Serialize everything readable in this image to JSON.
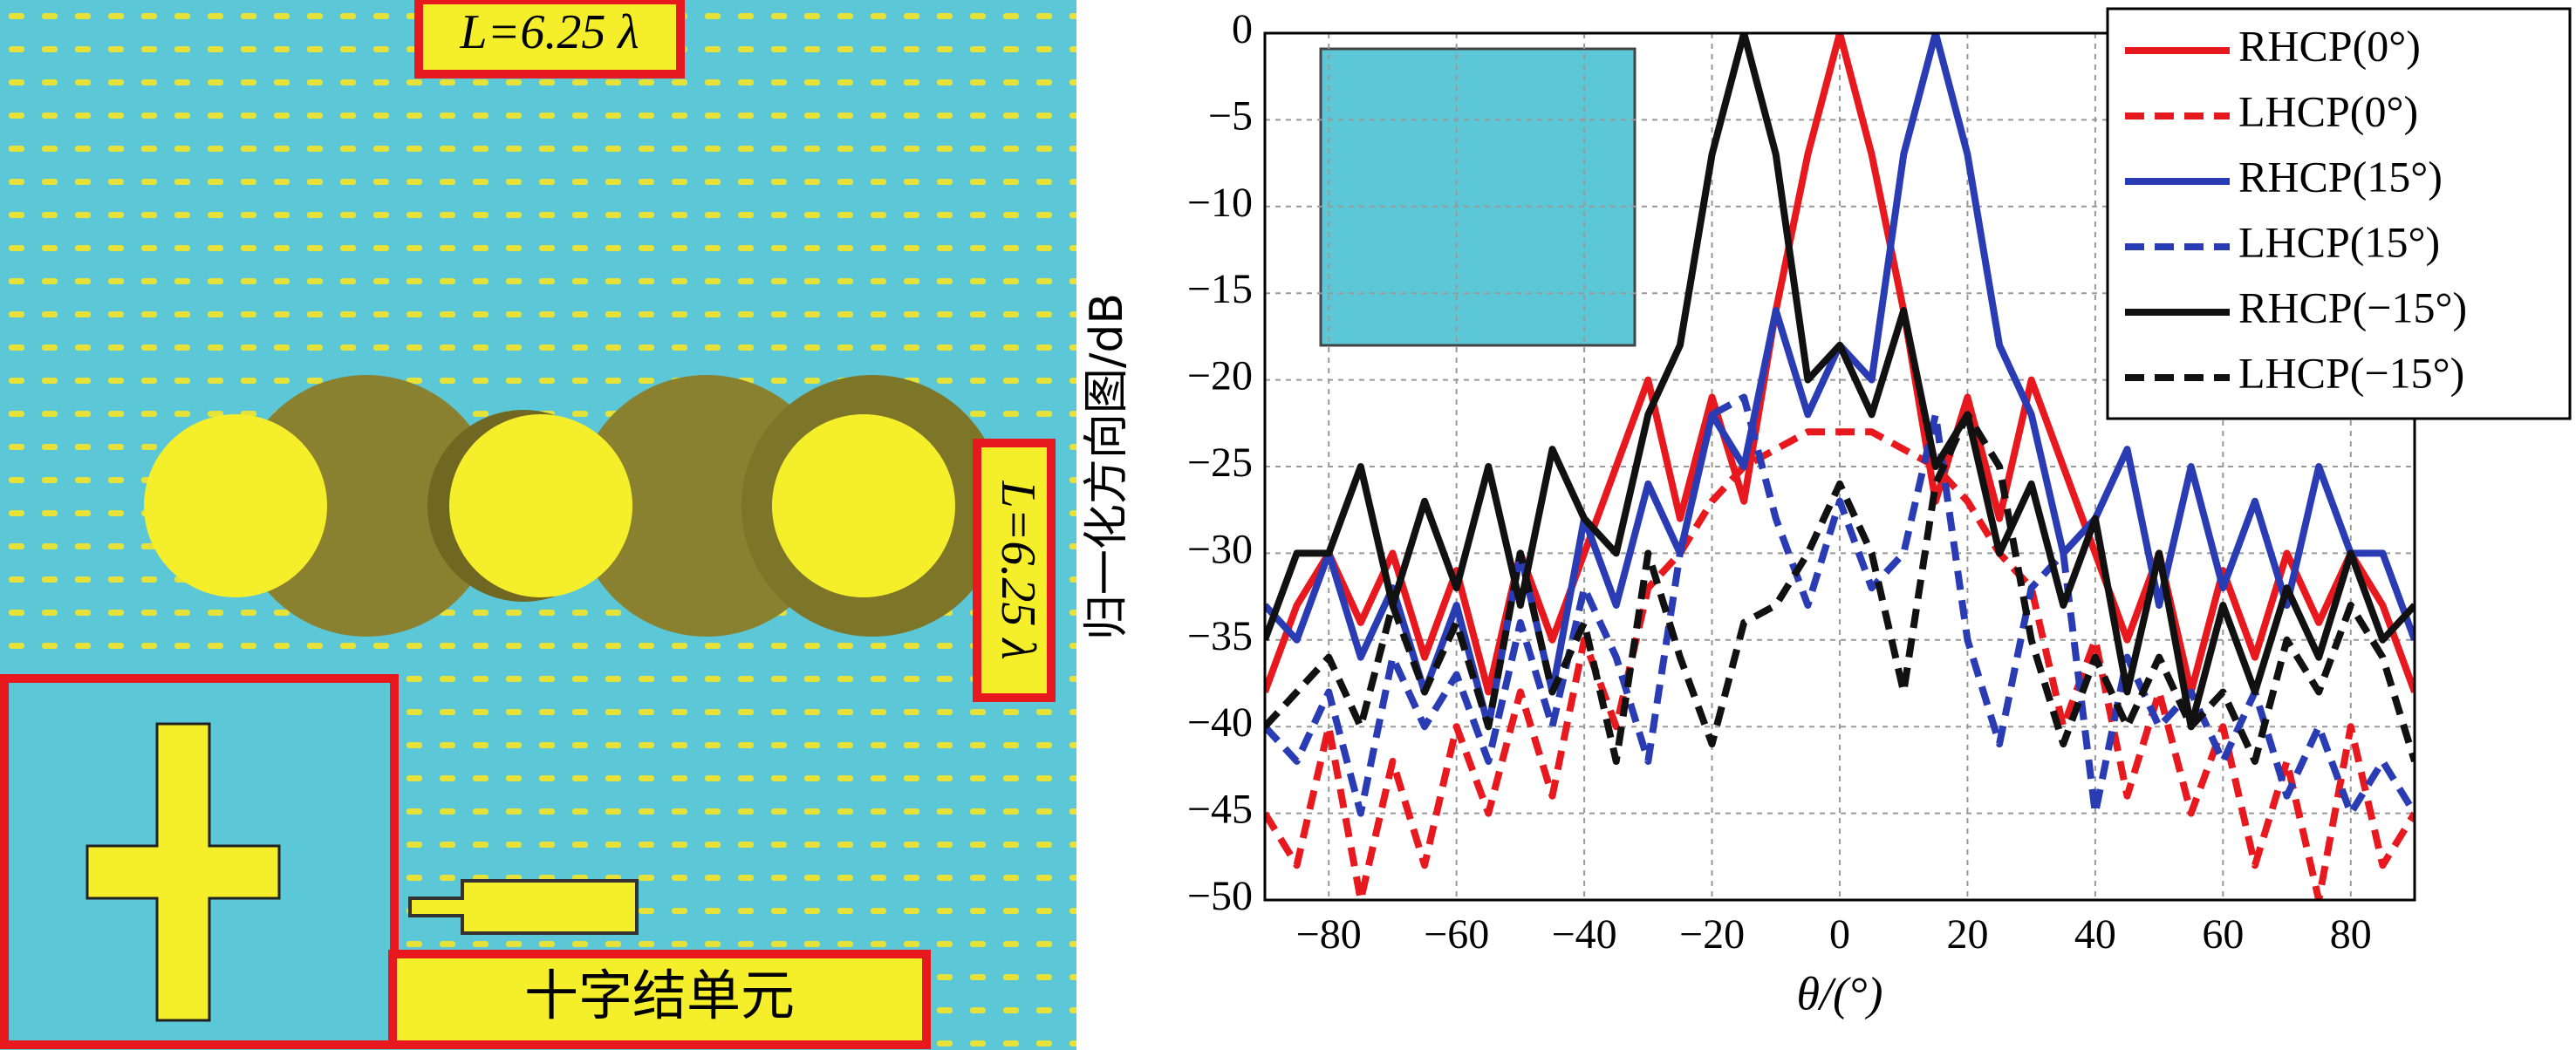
{
  "left_panel": {
    "top_label": "L=6.25 λ",
    "side_label": "L=6.25 λ",
    "caption": "十字结单元"
  },
  "chart_data": {
    "type": "line",
    "xlabel": "θ/(°)",
    "ylabel": "归一化方向图/dB",
    "x": [
      -90,
      -85,
      -80,
      -75,
      -70,
      -65,
      -60,
      -55,
      -50,
      -45,
      -40,
      -35,
      -30,
      -25,
      -20,
      -15,
      -10,
      -5,
      0,
      5,
      10,
      15,
      20,
      25,
      30,
      35,
      40,
      45,
      50,
      55,
      60,
      65,
      70,
      75,
      80,
      85,
      90
    ],
    "xlim": [
      -90,
      90
    ],
    "xticks": [
      {
        "value": -80,
        "label": "−80"
      },
      {
        "value": -60,
        "label": "−60"
      },
      {
        "value": -40,
        "label": "−40"
      },
      {
        "value": -20,
        "label": "−20"
      },
      0,
      20,
      40,
      60,
      80
    ],
    "ylim": [
      -50,
      0
    ],
    "yticks": [
      0,
      {
        "value": -5,
        "label": "−5"
      },
      {
        "value": -10,
        "label": "−10"
      },
      {
        "value": -15,
        "label": "−15"
      },
      {
        "value": -20,
        "label": "−20"
      },
      {
        "value": -25,
        "label": "−25"
      },
      {
        "value": -30,
        "label": "−30"
      },
      {
        "value": -35,
        "label": "−35"
      },
      {
        "value": -40,
        "label": "−40"
      },
      {
        "value": -45,
        "label": "−45"
      },
      {
        "value": -50,
        "label": "−50"
      }
    ],
    "grid": true,
    "legend": "upper right",
    "series": [
      {
        "name": "RHCP(0°)",
        "color": "#e8191e",
        "dash": false,
        "values": [
          -38,
          -33,
          -30,
          -34,
          -30,
          -36,
          -31,
          -38,
          -30,
          -35,
          -30,
          -25,
          -20,
          -28,
          -21,
          -27,
          -16,
          -7,
          0,
          -7,
          -16,
          -27,
          -21,
          -28,
          -20,
          -25,
          -30,
          -35,
          -30,
          -38,
          -31,
          -36,
          -30,
          -34,
          -30,
          -33,
          -38
        ]
      },
      {
        "name": "LHCP(0°)",
        "color": "#e8191e",
        "dash": true,
        "values": [
          -45,
          -48,
          -40,
          -50,
          -42,
          -48,
          -40,
          -45,
          -38,
          -44,
          -35,
          -40,
          -32,
          -30,
          -27,
          -25,
          -24,
          -23,
          -23,
          -23,
          -24,
          -25,
          -27,
          -30,
          -32,
          -40,
          -35,
          -44,
          -38,
          -45,
          -40,
          -48,
          -42,
          -50,
          -40,
          -48,
          -45
        ]
      },
      {
        "name": "RHCP(15°)",
        "color": "#2a3cb4",
        "dash": false,
        "values": [
          -33,
          -35,
          -30,
          -36,
          -32,
          -38,
          -33,
          -40,
          -30,
          -38,
          -28,
          -33,
          -26,
          -30,
          -22,
          -25,
          -16,
          -22,
          -18,
          -20,
          -7,
          0,
          -7,
          -18,
          -22,
          -30,
          -28,
          -24,
          -33,
          -25,
          -32,
          -27,
          -33,
          -25,
          -30,
          -30,
          -35
        ]
      },
      {
        "name": "LHCP(15°)",
        "color": "#2a3cb4",
        "dash": true,
        "values": [
          -40,
          -42,
          -38,
          -45,
          -36,
          -40,
          -37,
          -42,
          -34,
          -40,
          -32,
          -36,
          -42,
          -30,
          -22,
          -21,
          -28,
          -33,
          -27,
          -32,
          -30,
          -22,
          -35,
          -41,
          -32,
          -30,
          -45,
          -36,
          -40,
          -38,
          -42,
          -38,
          -44,
          -40,
          -45,
          -42,
          -45
        ]
      },
      {
        "name": "RHCP(−15°)",
        "color": "#111111",
        "dash": false,
        "values": [
          -35,
          -30,
          -30,
          -25,
          -33,
          -27,
          -32,
          -25,
          -33,
          -24,
          -28,
          -30,
          -22,
          -18,
          -7,
          0,
          -7,
          -20,
          -18,
          -22,
          -16,
          -25,
          -22,
          -30,
          -26,
          -33,
          -28,
          -38,
          -30,
          -40,
          -33,
          -38,
          -32,
          -36,
          -30,
          -35,
          -33
        ]
      },
      {
        "name": "LHCP(−15°)",
        "color": "#111111",
        "dash": true,
        "values": [
          -40,
          -38,
          -36,
          -40,
          -33,
          -38,
          -34,
          -40,
          -30,
          -38,
          -34,
          -42,
          -30,
          -36,
          -41,
          -34,
          -33,
          -30,
          -26,
          -30,
          -38,
          -26,
          -22,
          -25,
          -35,
          -41,
          -36,
          -40,
          -36,
          -40,
          -38,
          -42,
          -35,
          -38,
          -33,
          -36,
          -42
        ]
      }
    ]
  }
}
